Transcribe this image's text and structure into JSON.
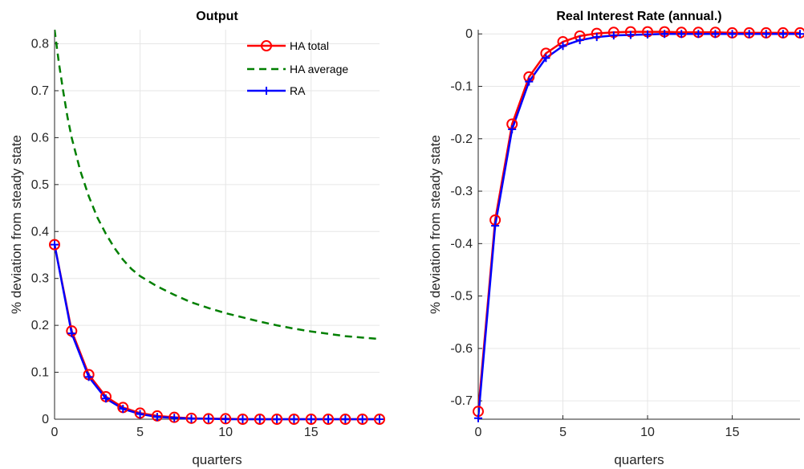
{
  "colors": {
    "ha_total": "#ff0000",
    "ha_average": "#007f00",
    "ra": "#0000ff",
    "grid": "#e6e6e6",
    "axis": "#262626"
  },
  "chart_data": [
    {
      "type": "line",
      "title": "Output",
      "xlabel": "quarters",
      "ylabel": "% deviation from steady state",
      "xlim": [
        0,
        19
      ],
      "ylim": [
        0,
        0.83
      ],
      "xticks": [
        "0",
        "5",
        "10",
        "15"
      ],
      "yticks": [
        "0",
        "0.1",
        "0.2",
        "0.3",
        "0.4",
        "0.5",
        "0.6",
        "0.7",
        "0.8"
      ],
      "grid": true,
      "legend_location": "top-right",
      "legend": [
        "HA total",
        "HA average",
        "RA"
      ],
      "series": [
        {
          "name": "HA total",
          "style": "solid-circle",
          "x": [
            0,
            1,
            2,
            3,
            4,
            5,
            6,
            7,
            8,
            9,
            10,
            11,
            12,
            13,
            14,
            15,
            16,
            17,
            18,
            19
          ],
          "values": [
            0.372,
            0.188,
            0.095,
            0.048,
            0.025,
            0.013,
            0.007,
            0.004,
            0.002,
            0.001,
            0.001,
            0,
            0,
            0,
            0,
            0,
            0,
            0,
            0,
            0
          ]
        },
        {
          "name": "HA average",
          "style": "dashed",
          "x": [
            0,
            0.25,
            0.5,
            0.75,
            1,
            1.5,
            2,
            2.5,
            3,
            3.5,
            4,
            4.5,
            5,
            6,
            7,
            8,
            9,
            10,
            11,
            12,
            13,
            14,
            15,
            16,
            17,
            18,
            19
          ],
          "values": [
            0.83,
            0.76,
            0.7,
            0.645,
            0.6,
            0.53,
            0.475,
            0.43,
            0.395,
            0.365,
            0.34,
            0.32,
            0.305,
            0.283,
            0.265,
            0.249,
            0.237,
            0.226,
            0.217,
            0.208,
            0.2,
            0.193,
            0.187,
            0.182,
            0.177,
            0.174,
            0.171
          ]
        },
        {
          "name": "RA",
          "style": "solid-plus",
          "x": [
            0,
            1,
            2,
            3,
            4,
            5,
            6,
            7,
            8,
            9,
            10,
            11,
            12,
            13,
            14,
            15,
            16,
            17,
            18,
            19
          ],
          "values": [
            0.372,
            0.183,
            0.09,
            0.044,
            0.022,
            0.011,
            0.005,
            0.003,
            0.001,
            0.001,
            0,
            0,
            0,
            0,
            0,
            0,
            0,
            0,
            0,
            0
          ]
        }
      ]
    },
    {
      "type": "line",
      "title": "Real Interest Rate (annual.)",
      "xlabel": "quarters",
      "ylabel": "% deviation from steady state",
      "xlim": [
        0,
        19
      ],
      "ylim": [
        -0.735,
        0.008
      ],
      "xticks": [
        "0",
        "5",
        "10",
        "15"
      ],
      "yticks": [
        "0",
        "-0.1",
        "-0.2",
        "-0.3",
        "-0.4",
        "-0.5",
        "-0.6",
        "-0.7"
      ],
      "grid": true,
      "series": [
        {
          "name": "HA total",
          "style": "solid-circle",
          "x": [
            0,
            1,
            2,
            3,
            4,
            5,
            6,
            7,
            8,
            9,
            10,
            11,
            12,
            13,
            14,
            15,
            16,
            17,
            18,
            19
          ],
          "values": [
            -0.72,
            -0.355,
            -0.172,
            -0.082,
            -0.037,
            -0.015,
            -0.004,
            0.001,
            0.003,
            0.004,
            0.004,
            0.004,
            0.003,
            0.003,
            0.003,
            0.002,
            0.002,
            0.002,
            0.002,
            0.002
          ]
        },
        {
          "name": "RA",
          "style": "solid-plus",
          "x": [
            0,
            1,
            2,
            3,
            4,
            5,
            6,
            7,
            8,
            9,
            10,
            11,
            12,
            13,
            14,
            15,
            16,
            17,
            18,
            19
          ],
          "values": [
            -0.733,
            -0.366,
            -0.182,
            -0.091,
            -0.046,
            -0.023,
            -0.012,
            -0.006,
            -0.003,
            -0.002,
            -0.001,
            0,
            0,
            0,
            0,
            0,
            0,
            0,
            0,
            0
          ]
        }
      ]
    }
  ]
}
